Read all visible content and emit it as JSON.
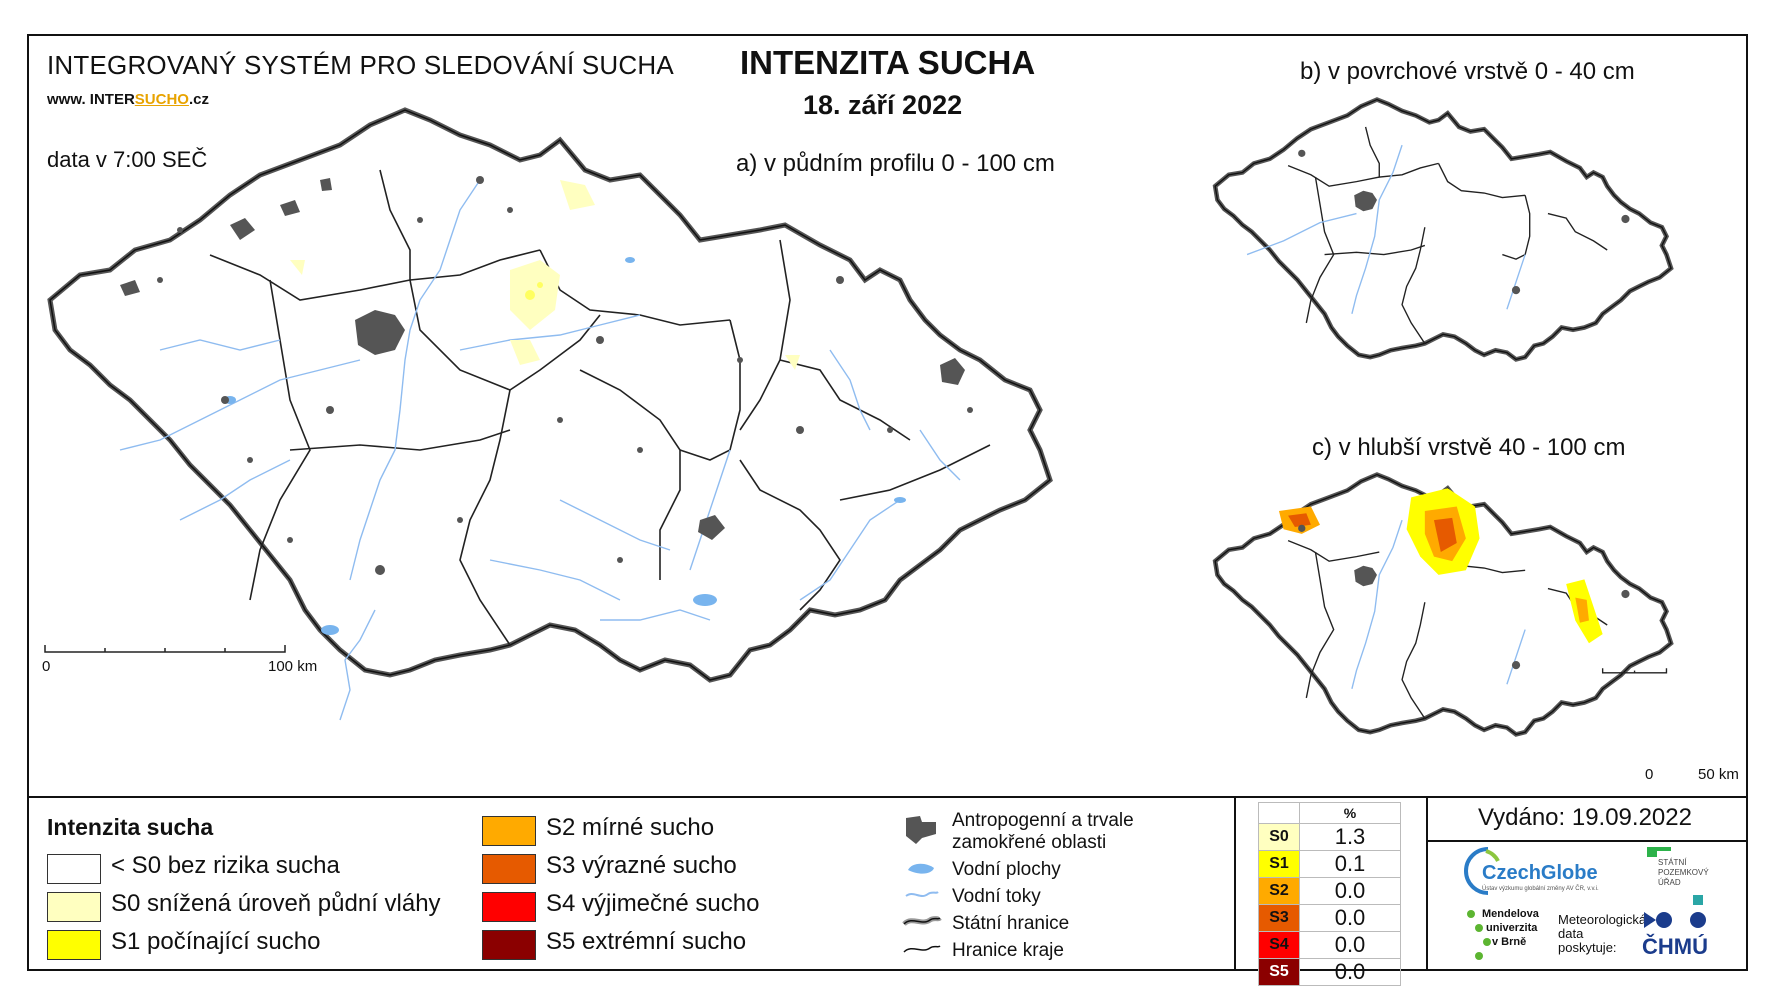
{
  "header": {
    "system_title": "INTEGROVANÝ SYSTÉM PRO SLEDOVÁNÍ SUCHA",
    "url_prefix": "www. INTER",
    "url_highlight": "SUCHO",
    "url_suffix": ".cz",
    "data_time": "data v 7:00 SEČ",
    "main_title": "INTENZITA SUCHA",
    "date": "18. září 2022"
  },
  "maps": {
    "a_label": "a) v půdním profilu 0 - 100 cm",
    "b_label": "b) v povrchové vrstvě 0 - 40 cm",
    "c_label": "c) v hlubší vrstvě 40 - 100 cm",
    "scale_main": {
      "start": "0",
      "end": "100 km"
    },
    "scale_small": {
      "start": "0",
      "end": "50 km"
    }
  },
  "legend": {
    "title": "Intenzita sucha",
    "classes": [
      {
        "label": "< S0 bez rizika sucha",
        "color": "#ffffff"
      },
      {
        "label": "S0 snížená úroveň půdní vláhy",
        "color": "#ffffc0"
      },
      {
        "label": "S1 počínající sucho",
        "color": "#ffff00"
      },
      {
        "label": "S2 mírné sucho",
        "color": "#ffaa00"
      },
      {
        "label": "S3 výrazné sucho",
        "color": "#e65a00"
      },
      {
        "label": "S4 výjimečné sucho",
        "color": "#ff0000"
      },
      {
        "label": "S5 extrémní sucho",
        "color": "#8b0000"
      }
    ],
    "other": [
      {
        "label": "Antropogenní a trvale",
        "label2": "zamokřené oblasti",
        "icon": "urban-area-icon"
      },
      {
        "label": "Vodní plochy",
        "icon": "water-body-icon"
      },
      {
        "label": "Vodní toky",
        "icon": "river-icon"
      },
      {
        "label": "Státní hranice",
        "icon": "state-border-icon"
      },
      {
        "label": "Hranice kraje",
        "icon": "region-border-icon"
      }
    ]
  },
  "stats": {
    "header": "%",
    "rows": [
      {
        "code": "S0",
        "value": "1.3",
        "color": "#ffffc0"
      },
      {
        "code": "S1",
        "value": "0.1",
        "color": "#ffff00"
      },
      {
        "code": "S2",
        "value": "0.0",
        "color": "#ffaa00"
      },
      {
        "code": "S3",
        "value": "0.0",
        "color": "#e65a00"
      },
      {
        "code": "S4",
        "value": "0.0",
        "color": "#ff0000"
      },
      {
        "code": "S5",
        "value": "0.0",
        "color": "#8b0000"
      }
    ]
  },
  "footer": {
    "issued": "Vydáno: 19.09.2022",
    "logo_czechglobe": "CzechGlobe",
    "logo_czechglobe_sub": "Ústav výzkumu globální změny AV ČR, v.v.i.",
    "logo_spu_line1": "STÁTNÍ",
    "logo_spu_line2": "POZEMKOVÝ",
    "logo_spu_line3": "ÚŘAD",
    "logo_mendel_line1": "Mendelova",
    "logo_mendel_line2": "univerzita",
    "logo_mendel_line3": "v Brně",
    "met_line1": "Meteorologická",
    "met_line2": "data",
    "met_line3": "poskytuje:",
    "logo_chmu": "ČHMÚ"
  }
}
